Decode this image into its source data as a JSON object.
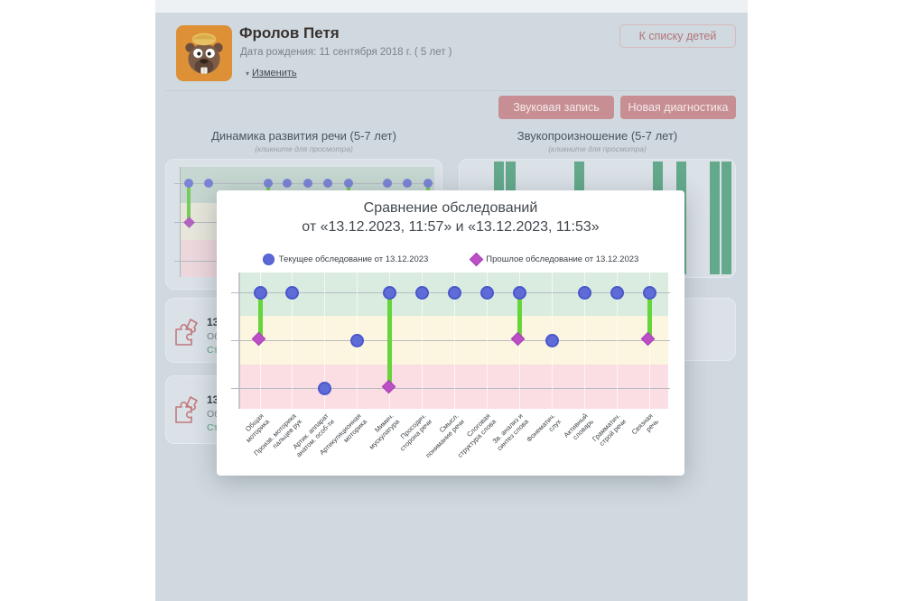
{
  "page": {
    "header": {
      "name": "Фролов Петя",
      "birth_date": "Дата рождения: 11 сентября 2018 г. ( 5 лет )",
      "edit_caret": "▾",
      "edit_link": "Изменить",
      "back_button": "К списку детей"
    },
    "toolbar": {
      "sound_record_button": "Звуковая запись",
      "new_diagnostic_button": "Новая диагностика"
    },
    "sections": {
      "left_title": "Динамика развития речи (5-7 лет)",
      "left_subtitle": "(кликните для просмотра)",
      "right_title": "Звукопроизношение (5-7 лет)",
      "right_subtitle": "(кликните для просмотра)"
    },
    "history_items": [
      {
        "date": "13 д",
        "title": "Обс",
        "status": "Стат"
      },
      {
        "date": "13 д",
        "title": "Обс",
        "status": "Стат"
      }
    ]
  },
  "modal": {
    "title_line1": "Сравнение обследований",
    "title_line2": "от «13.12.2023, 11:57» и «13.12.2023, 11:53»",
    "legend": {
      "current": "Текущее обследование от 13.12.2023",
      "previous": "Прошлое обследование от 13.12.2023"
    }
  },
  "colors": {
    "accent_rose": "#c78e93",
    "current_point_blue": "#5f6cd8",
    "previous_point_magenta": "#bc4fc5",
    "connector_green": "#65d53b",
    "bar_green": "#64a98b",
    "avatar_bg_orange": "#dd9035",
    "status_green": "#5aa57b"
  },
  "icons": {
    "edit_caret": "chevron-down-icon",
    "history": "puzzle-pieces-icon",
    "avatar": "beaver-cartoon-image",
    "legend_current": "circle-marker",
    "legend_previous": "diamond-marker"
  },
  "chart_data": [
    {
      "type": "scatter",
      "title": "Сравнение обследований от «13.12.2023, 11:57» и «13.12.2023, 11:53»",
      "xlabel": "",
      "ylabel": "",
      "ylim": [
        0.5,
        3.5
      ],
      "grid": true,
      "legend_position": "top",
      "categories": [
        "Общая\nмоторика",
        "Произв. моторика\nпальцев рук",
        "Артик. аппарат\nанатом. особ-ти",
        "Артикуляционная\nмоторика",
        "Мимич.\nмускулатура",
        "Просодич.\nсторона речи",
        "Смысл.\nпонимание речи",
        "Слоговая\nструктура слова",
        "Зв. анализ и\nсинтез слова",
        "Фонематич.\nслух",
        "Активный\nсловарь",
        "Грамматич.\nстрой речи",
        "Связная\nречь"
      ],
      "series": [
        {
          "name": "Текущее обследование от 13.12.2023",
          "marker": "circle",
          "color": "#5f6cd8",
          "values": [
            3,
            3,
            1,
            2,
            3,
            3,
            3,
            3,
            3,
            2,
            3,
            3,
            3
          ]
        },
        {
          "name": "Прошлое обследование от 13.12.2023",
          "marker": "diamond",
          "color": "#bc4fc5",
          "values": [
            2,
            null,
            null,
            null,
            1,
            null,
            null,
            null,
            2,
            null,
            null,
            null,
            2
          ]
        }
      ],
      "zones": [
        {
          "range": [
            2.5,
            3.5
          ],
          "color": "#d9ecdf"
        },
        {
          "range": [
            1.5,
            2.5
          ],
          "color": "#fcf5e0"
        },
        {
          "range": [
            0.5,
            1.5
          ],
          "color": "#fadee3"
        }
      ],
      "connector_color": "#65d53b"
    },
    {
      "type": "scatter",
      "title": "Динамика развития речи (5-7 лет)",
      "note": "background preview, partially covered by modal; px coords relative to card",
      "dots_current": [
        [
          25,
          26
        ],
        [
          47,
          26
        ],
        [
          113,
          26
        ],
        [
          134,
          26
        ],
        [
          157,
          26
        ],
        [
          179,
          26
        ],
        [
          202,
          26
        ],
        [
          245,
          26
        ],
        [
          267,
          26
        ],
        [
          290,
          26
        ]
      ],
      "dot_previous": [
        [
          25,
          69
        ]
      ],
      "connectors": [
        [
          25,
          26,
          69
        ],
        [
          113,
          26,
          76
        ],
        [
          202,
          26,
          76
        ],
        [
          290,
          26,
          76
        ]
      ]
    },
    {
      "type": "bar",
      "title": "Звукопроизношение (5-7 лет)",
      "note": "background preview, partially covered by modal; bars [x,y,w,h] relative to card",
      "bars": [
        [
          38,
          2,
          11,
          125
        ],
        [
          51,
          2,
          11,
          125
        ],
        [
          127,
          2,
          11,
          125
        ],
        [
          214,
          2,
          11,
          125
        ],
        [
          240,
          2,
          11,
          125
        ],
        [
          277,
          2,
          11,
          125
        ],
        [
          290,
          2,
          11,
          125
        ]
      ]
    }
  ]
}
